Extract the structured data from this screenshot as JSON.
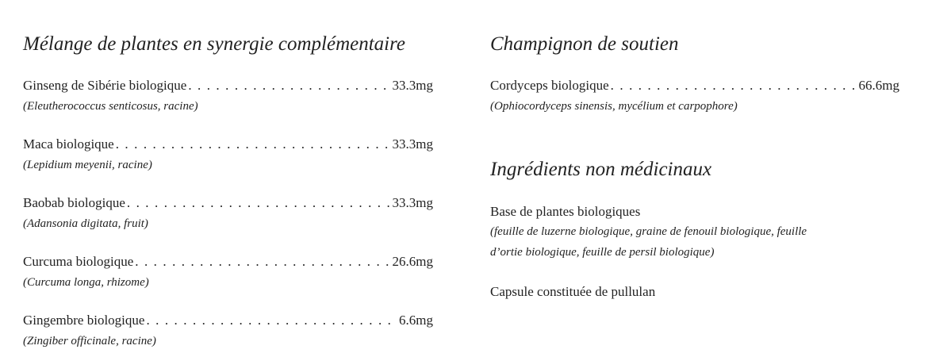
{
  "left": {
    "heading": "Mélange de plantes en synergie complémentaire",
    "items": [
      {
        "name": "Ginseng de Sibérie biologique",
        "amount": "33.3mg",
        "detail": "(Eleutherococcus senticosus, racine)"
      },
      {
        "name": "Maca biologique",
        "amount": "33.3mg",
        "detail": "(Lepidium meyenii, racine)"
      },
      {
        "name": "Baobab biologique",
        "amount": "33.3mg",
        "detail": "(Adansonia digitata, fruit)"
      },
      {
        "name": "Curcuma biologique",
        "amount": "26.6mg",
        "detail": "(Curcuma longa, rhizome)"
      },
      {
        "name": "Gingembre biologique",
        "amount": "6.6mg",
        "detail": "(Zingiber officinale, racine)"
      }
    ]
  },
  "right": {
    "heading": "Champignon de soutien",
    "items": [
      {
        "name": "Cordyceps biologique",
        "amount": "66.6mg",
        "detail": "(Ophiocordyceps sinensis, mycélium et carpophore)"
      }
    ],
    "non_medicinal": {
      "heading": "Ingrédients non médicinaux",
      "base": "Base de plantes biologiques",
      "base_detail_1": "(feuille de luzerne biologique, graine de fenouil biologique, feuille",
      "base_detail_2": "d’ortie biologique, feuille de persil biologique)",
      "capsule": "Capsule constituée de pullulan"
    }
  }
}
